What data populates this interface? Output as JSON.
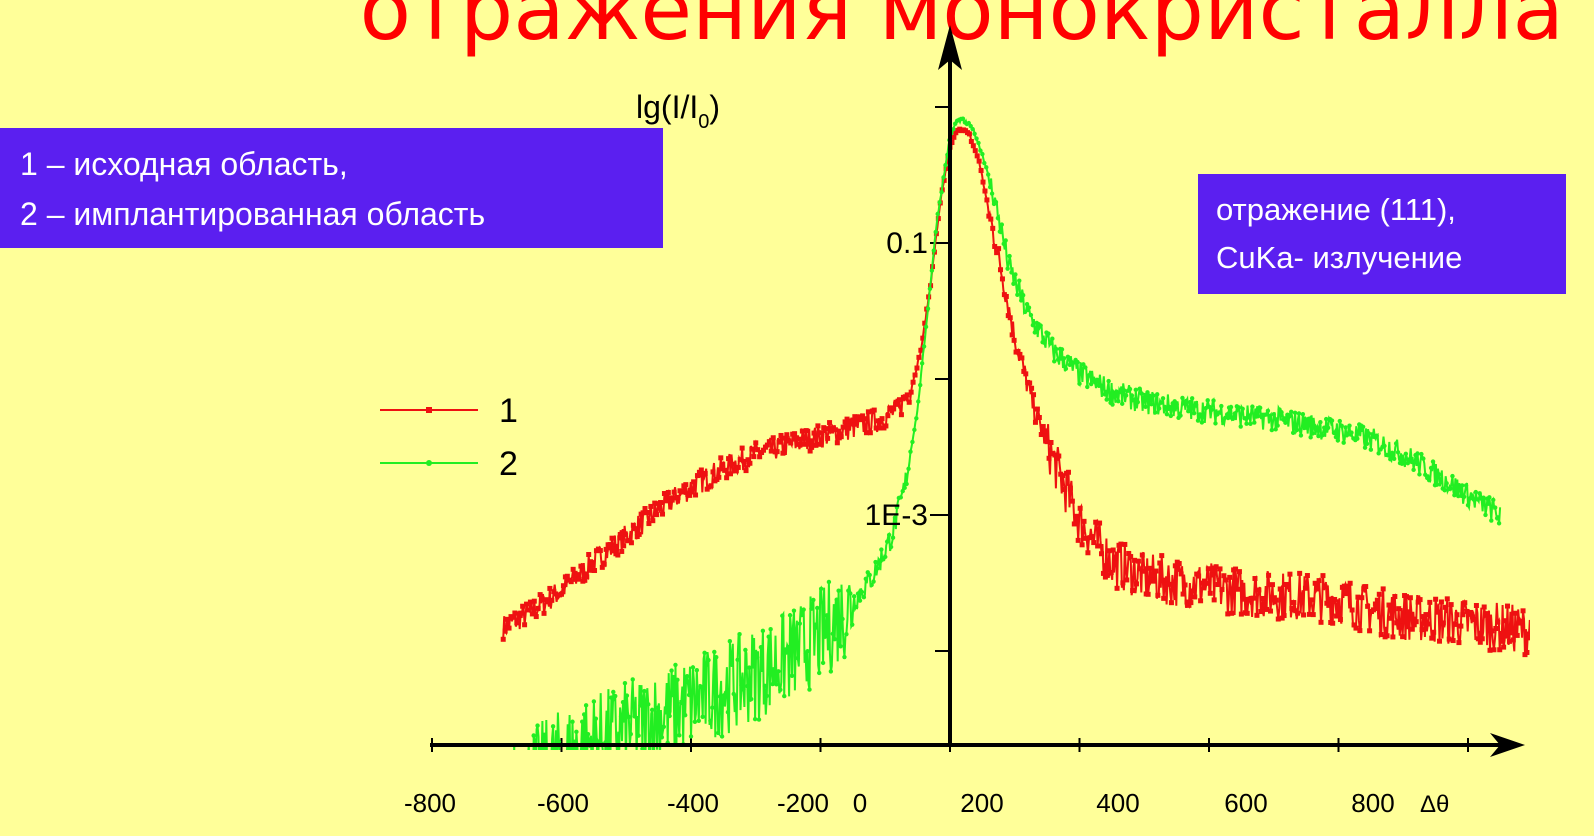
{
  "title": "отражения монокристалла",
  "notes": {
    "left": [
      "1 – исходная область,",
      "2 – имплантированная область"
    ],
    "right": [
      "отражение (111),",
      "CuKa- излучение"
    ]
  },
  "chart_data": {
    "type": "line",
    "title": "",
    "xlabel": "Δθ",
    "ylabel": "lg(I/I",
    "ylabel_sub": "0",
    "xlim": [
      -800,
      900
    ],
    "ylim_log10": [
      -5,
      0.5
    ],
    "x_ticks": [
      -800,
      -600,
      -400,
      -200,
      0,
      200,
      400,
      600,
      800
    ],
    "y_tick_labels": [
      {
        "value": 0.1,
        "label": "0.1"
      },
      {
        "value": 0.001,
        "label": "1E-3"
      }
    ],
    "y_minor_ticks_log10": [
      0,
      -2,
      -4
    ],
    "legend_position": "left",
    "series": [
      {
        "name": "1",
        "color": "#ee1111",
        "x": [
          -690,
          -650,
          -600,
          -550,
          -500,
          -450,
          -400,
          -350,
          -300,
          -250,
          -200,
          -150,
          -110,
          -80,
          -60,
          -45,
          -30,
          -15,
          0,
          10,
          20,
          30,
          45,
          60,
          80,
          100,
          130,
          160,
          200,
          250,
          300,
          350,
          400,
          450,
          500,
          550,
          600,
          650,
          700,
          750,
          800,
          850,
          900
        ],
        "y": [
          0.00015,
          0.00019,
          0.00028,
          0.00045,
          0.0007,
          0.0011,
          0.0016,
          0.0022,
          0.0028,
          0.0033,
          0.0038,
          0.0044,
          0.005,
          0.006,
          0.0085,
          0.016,
          0.05,
          0.2,
          0.5,
          0.65,
          0.7,
          0.62,
          0.4,
          0.17,
          0.06,
          0.02,
          0.006,
          0.0025,
          0.0009,
          0.00045,
          0.00035,
          0.00032,
          0.0003,
          0.00027,
          0.00026,
          0.00025,
          0.00024,
          0.0002,
          0.00018,
          0.00017,
          0.00016,
          0.00015,
          0.00014
        ]
      },
      {
        "name": "2",
        "color": "#22ee22",
        "x": [
          -700,
          -650,
          -600,
          -550,
          -500,
          -450,
          -400,
          -350,
          -300,
          -250,
          -200,
          -160,
          -120,
          -90,
          -70,
          -50,
          -35,
          -20,
          0,
          10,
          20,
          35,
          50,
          70,
          90,
          120,
          160,
          200,
          250,
          300,
          350,
          400,
          450,
          500,
          550,
          600,
          650,
          700,
          750,
          800,
          850
        ],
        "y": [
          8e-06,
          1.2e-05,
          1.7e-05,
          2.2e-05,
          2.7e-05,
          3.3e-05,
          4.2e-05,
          5.3e-05,
          6.8e-05,
          9e-05,
          0.00013,
          0.0002,
          0.00035,
          0.0007,
          0.0016,
          0.006,
          0.03,
          0.15,
          0.6,
          0.78,
          0.8,
          0.7,
          0.45,
          0.2,
          0.07,
          0.03,
          0.016,
          0.011,
          0.008,
          0.0068,
          0.0062,
          0.0058,
          0.0054,
          0.0051,
          0.0046,
          0.0042,
          0.0036,
          0.0028,
          0.002,
          0.0014,
          0.001
        ]
      }
    ]
  }
}
